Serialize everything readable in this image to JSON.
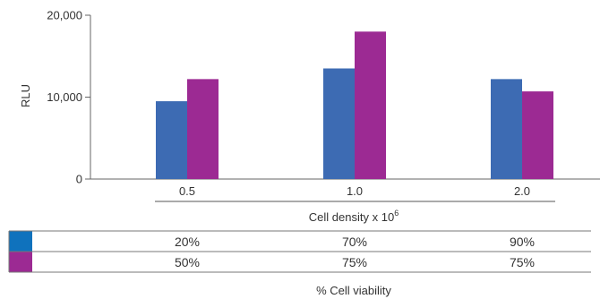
{
  "chart_data": {
    "type": "bar",
    "categories": [
      "0.5",
      "1.0",
      "2.0"
    ],
    "series": [
      {
        "values": [
          9500,
          13500,
          12200
        ],
        "color": "#3d6bb3"
      },
      {
        "values": [
          12200,
          18000,
          10700
        ],
        "color": "#9c2a93"
      }
    ],
    "ylabel": "RLU",
    "xlabel": "Cell density x 10",
    "xlabel_superscript": "6",
    "ylim": [
      0,
      20000
    ],
    "yticks": [
      0,
      10000,
      20000
    ],
    "ytick_labels": [
      "0",
      "10,000",
      "20,000"
    ],
    "grid": false,
    "legend": "table-below"
  },
  "viability_table": {
    "caption": "% Cell viability",
    "rows": [
      {
        "swatch_color": "#0f72bd",
        "values": [
          "20%",
          "70%",
          "90%"
        ]
      },
      {
        "swatch_color": "#9c2a93",
        "values": [
          "50%",
          "75%",
          "75%"
        ]
      }
    ]
  }
}
